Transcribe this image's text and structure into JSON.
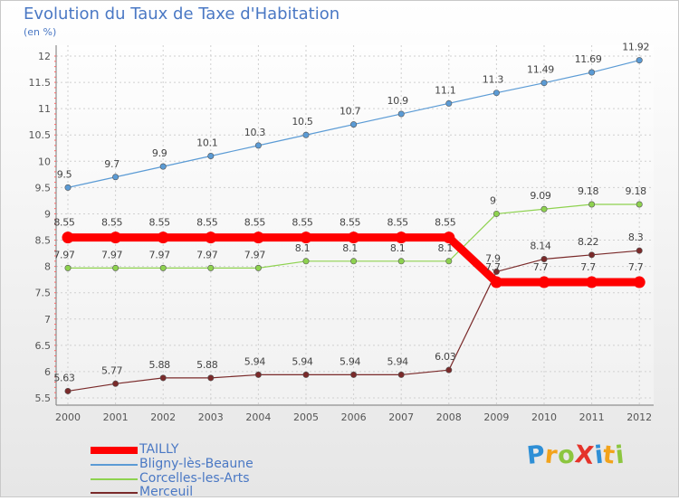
{
  "title": "Evolution du Taux de Taxe d'Habitation",
  "units": "(en %)",
  "logo": {
    "text": "ProXiti",
    "letter_colors": [
      "#2e8fd6",
      "#f2a31b",
      "#8cc63f",
      "#e5332a",
      "#2e8fd6",
      "#f2a31b",
      "#8cc63f"
    ]
  },
  "chart_data": {
    "type": "line",
    "x": [
      "2000",
      "2001",
      "2002",
      "2003",
      "2004",
      "2005",
      "2006",
      "2007",
      "2008",
      "2009",
      "2010",
      "2011",
      "2012"
    ],
    "ylim": [
      5.5,
      12
    ],
    "yticks": [
      "5.5",
      "6",
      "6.5",
      "7",
      "7.5",
      "8",
      "8.5",
      "9",
      "9.5",
      "10",
      "10.5",
      "11",
      "11.5",
      "12"
    ],
    "grid": true,
    "legend_position": "bottom-left",
    "series": [
      {
        "name": "TAILLY",
        "color": "#ff0000",
        "values": [
          8.55,
          8.55,
          8.55,
          8.55,
          8.55,
          8.55,
          8.55,
          8.55,
          8.55,
          7.7,
          7.7,
          7.7,
          7.7
        ],
        "labels": [
          "8.55",
          "8.55",
          "8.55",
          "8.55",
          "8.55",
          "8.55",
          "8.55",
          "8.55",
          "8.55",
          "7.7",
          "7.7",
          "7.7",
          "7.7"
        ]
      },
      {
        "name": "Bligny-lès-Beaune",
        "color": "#5b9bd5",
        "values": [
          9.5,
          9.7,
          9.9,
          10.1,
          10.3,
          10.5,
          10.7,
          10.9,
          11.1,
          11.3,
          11.49,
          11.69,
          11.92
        ],
        "labels": [
          "9.5",
          "9.7",
          "9.9",
          "10.1",
          "10.3",
          "10.5",
          "10.7",
          "10.9",
          "11.1",
          "11.3",
          "11.49",
          "11.69",
          "11.92"
        ]
      },
      {
        "name": "Corcelles-les-Arts",
        "color": "#8ed24f",
        "values": [
          7.97,
          7.97,
          7.97,
          7.97,
          7.97,
          8.1,
          8.1,
          8.1,
          8.1,
          9,
          9.09,
          9.18,
          9.18
        ],
        "labels": [
          "7.97",
          "7.97",
          "7.97",
          "7.97",
          "7.97",
          "8.1",
          "8.1",
          "8.1",
          "8.1",
          "9",
          "9.09",
          "9.18",
          "9.18"
        ]
      },
      {
        "name": "Merceuil",
        "color": "#7a2a2a",
        "values": [
          5.63,
          5.77,
          5.88,
          5.88,
          5.94,
          5.94,
          5.94,
          5.94,
          6.03,
          7.9,
          8.14,
          8.22,
          8.3
        ],
        "labels": [
          "5.63",
          "5.77",
          "5.88",
          "5.88",
          "5.94",
          "5.94",
          "5.94",
          "5.94",
          "6.03",
          "7.9",
          "8.14",
          "8.22",
          "8.3"
        ]
      }
    ]
  }
}
